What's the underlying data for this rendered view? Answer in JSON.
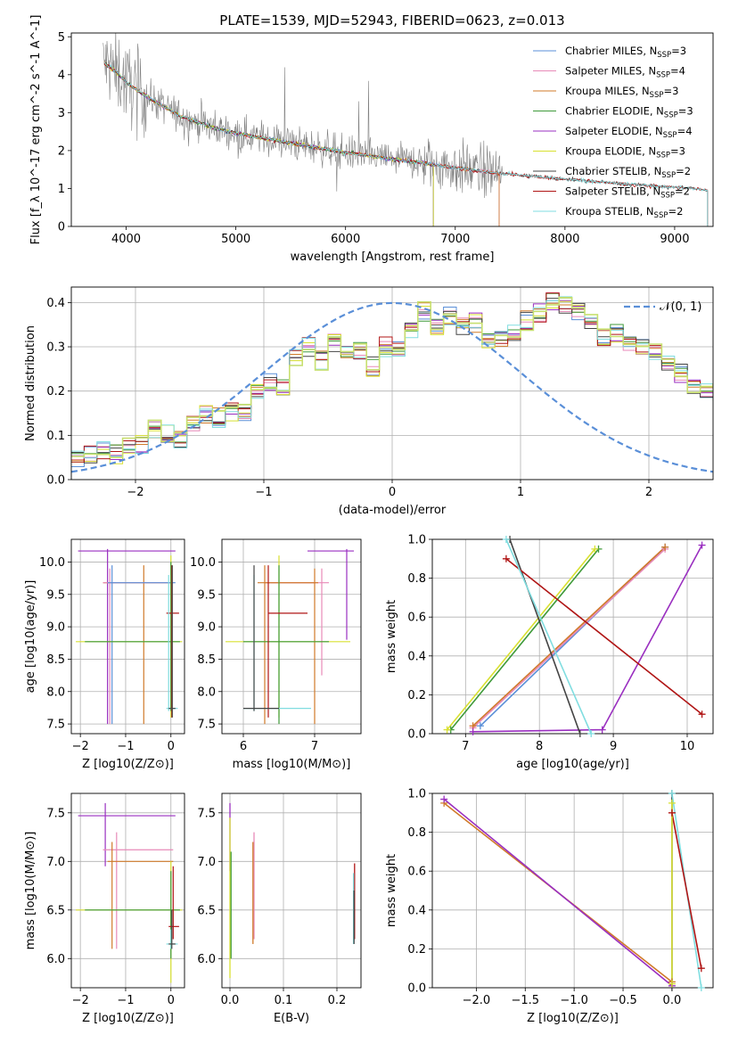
{
  "figure_title": "PLATE=1539, MJD=52943, FIBERID=0623, z=0.013",
  "colors": {
    "observed": "#808080",
    "chabrier_miles": "#5a8fd8",
    "salpeter_miles": "#e88ab8",
    "kroupa_miles": "#d07a2a",
    "chabrier_elodie": "#3f9a3a",
    "salpeter_elodie": "#9a2fc0",
    "kroupa_elodie": "#d8e030",
    "chabrier_stelib": "#444444",
    "salpeter_stelib": "#b01515",
    "kroupa_stelib": "#80dde0",
    "normal": "#5a8fd8",
    "step_extra": "#c8e070"
  },
  "chart_data": [
    {
      "id": "spectrum",
      "type": "line",
      "title": "PLATE=1539, MJD=52943, FIBERID=0623, z=0.013",
      "xlabel": "wavelength [Angstrom, rest frame]",
      "ylabel": "Flux [f_λ 10^-17 erg cm^-2 s^-1 A^-1]",
      "xlim": [
        3500,
        9350
      ],
      "ylim": [
        0,
        5.1
      ],
      "xticks": [
        "4000",
        "5000",
        "6000",
        "7000",
        "8000",
        "9000"
      ],
      "yticks": [
        "0",
        "1",
        "2",
        "3",
        "4",
        "5"
      ],
      "grid": false,
      "legend_position": "top-right",
      "legend": [
        {
          "base": "Chabrier MILES, N",
          "sub": "SSP",
          "tail": "=3",
          "color_key": "chabrier_miles"
        },
        {
          "base": "Salpeter MILES, N",
          "sub": "SSP",
          "tail": "=4",
          "color_key": "salpeter_miles"
        },
        {
          "base": "Kroupa MILES, N",
          "sub": "SSP",
          "tail": "=3",
          "color_key": "kroupa_miles"
        },
        {
          "base": "Chabrier ELODIE, N",
          "sub": "SSP",
          "tail": "=3",
          "color_key": "chabrier_elodie"
        },
        {
          "base": "Salpeter ELODIE, N",
          "sub": "SSP",
          "tail": "=4",
          "color_key": "salpeter_elodie"
        },
        {
          "base": "Kroupa ELODIE, N",
          "sub": "SSP",
          "tail": "=3",
          "color_key": "kroupa_elodie"
        },
        {
          "base": "Chabrier STELIB, N",
          "sub": "SSP",
          "tail": "=2",
          "color_key": "chabrier_stelib"
        },
        {
          "base": "Salpeter STELIB, N",
          "sub": "SSP",
          "tail": "=2",
          "color_key": "salpeter_stelib"
        },
        {
          "base": "Kroupa STELIB, N",
          "sub": "SSP",
          "tail": "=2",
          "color_key": "kroupa_stelib"
        }
      ],
      "continuum": {
        "x": [
          3800,
          3900,
          4000,
          4200,
          4500,
          4800,
          5000,
          5300,
          5600,
          6000,
          6500,
          7000,
          7400,
          8000,
          8500,
          9000,
          9300
        ],
        "y": [
          4.3,
          4.1,
          3.8,
          3.4,
          2.9,
          2.6,
          2.45,
          2.3,
          2.15,
          1.95,
          1.75,
          1.55,
          1.4,
          1.25,
          1.13,
          1.03,
          0.97
        ]
      },
      "ssp_end_wavelength": [
        7400,
        7400,
        7400,
        6800,
        6800,
        6800,
        9300,
        9300,
        9300
      ],
      "observed_end_wavelength": 7430
    },
    {
      "id": "residuals",
      "type": "line",
      "xlabel": "(data-model)/error",
      "ylabel": "Normed distribution",
      "xlim": [
        -2.5,
        2.5
      ],
      "ylim": [
        0,
        0.435
      ],
      "xticks": [
        "−2",
        "−1",
        "0",
        "1",
        "2"
      ],
      "yticks": [
        "0.0",
        "0.1",
        "0.2",
        "0.3",
        "0.4"
      ],
      "grid": true,
      "legend_position": "top-right",
      "legend_label": "𝒩(0, 1)",
      "bin_width": 0.1,
      "bin_start": -2.5,
      "step_values": [
        0.047,
        0.055,
        0.065,
        0.056,
        0.075,
        0.078,
        0.115,
        0.105,
        0.092,
        0.13,
        0.145,
        0.14,
        0.152,
        0.155,
        0.2,
        0.22,
        0.205,
        0.28,
        0.3,
        0.27,
        0.31,
        0.285,
        0.29,
        0.255,
        0.3,
        0.3,
        0.34,
        0.38,
        0.35,
        0.37,
        0.35,
        0.355,
        0.32,
        0.315,
        0.33,
        0.36,
        0.375,
        0.4,
        0.395,
        0.38,
        0.36,
        0.32,
        0.33,
        0.31,
        0.3,
        0.285,
        0.26,
        0.24,
        0.21,
        0.2
      ],
      "step_values_b": [
        0.2,
        0.18,
        0.16,
        0.15,
        0.14,
        0.13,
        0.125,
        0.11,
        0.1,
        0.09,
        0.085,
        0.07,
        0.065,
        0.06,
        0.055,
        0.05,
        0.04,
        0.035,
        0.03,
        0.025
      ]
    },
    {
      "id": "age_vs_z",
      "type": "scatter",
      "xlabel": "Z [log10(Z/Z⊙)]",
      "ylabel": "age [log10(age/yr)]",
      "xlim": [
        -2.2,
        0.3
      ],
      "ylim": [
        7.35,
        10.35
      ],
      "xticks": [
        "−2",
        "−1",
        "0"
      ],
      "yticks": [
        "7.5",
        "8.0",
        "8.5",
        "9.0",
        "9.5",
        "10.0"
      ],
      "grid": true
    },
    {
      "id": "age_vs_mass",
      "type": "scatter",
      "xlabel": "mass [log10(M/M⊙)]",
      "xlim": [
        5.7,
        7.65
      ],
      "ylim": [
        7.35,
        10.35
      ],
      "xticks": [
        "6",
        "7"
      ],
      "yticks": [
        "7.5",
        "8.0",
        "8.5",
        "9.0",
        "9.5",
        "10.0"
      ],
      "grid": true
    },
    {
      "id": "weight_vs_age",
      "type": "line",
      "xlabel": "age [log10(age/yr)]",
      "ylabel": "mass weight",
      "xlim": [
        6.55,
        10.35
      ],
      "ylim": [
        0,
        1
      ],
      "xticks": [
        "7",
        "8",
        "9",
        "10"
      ],
      "yticks": [
        "0.0",
        "0.2",
        "0.4",
        "0.6",
        "0.8",
        "1.0"
      ],
      "grid": true,
      "lines": [
        {
          "color_key": "chabrier_miles",
          "x": [
            7.2,
            9.7
          ],
          "y": [
            0.04,
            0.96
          ]
        },
        {
          "color_key": "salpeter_miles",
          "x": [
            7.1,
            9.7
          ],
          "y": [
            0.03,
            0.95
          ]
        },
        {
          "color_key": "kroupa_miles",
          "x": [
            7.1,
            9.7
          ],
          "y": [
            0.04,
            0.96
          ]
        },
        {
          "color_key": "chabrier_elodie",
          "x": [
            6.8,
            8.8
          ],
          "y": [
            0.02,
            0.95
          ]
        },
        {
          "color_key": "kroupa_elodie",
          "x": [
            6.75,
            8.75
          ],
          "y": [
            0.02,
            0.95
          ]
        },
        {
          "color_key": "salpeter_elodie",
          "x": [
            7.1,
            8.85,
            10.2
          ],
          "y": [
            0.01,
            0.02,
            0.97
          ]
        },
        {
          "color_key": "chabrier_stelib",
          "x": [
            7.6,
            8.55
          ],
          "y": [
            1.0,
            0.0
          ]
        },
        {
          "color_key": "salpeter_stelib",
          "x": [
            7.55,
            10.2
          ],
          "y": [
            0.9,
            0.1
          ]
        },
        {
          "color_key": "kroupa_stelib",
          "x": [
            7.55,
            8.7
          ],
          "y": [
            1.0,
            0.0
          ]
        }
      ]
    },
    {
      "id": "mass_vs_z",
      "type": "scatter",
      "xlabel": "Z [log10(Z/Z⊙)]",
      "ylabel": "mass [log10(M/M⊙)]",
      "xlim": [
        -2.2,
        0.3
      ],
      "ylim": [
        5.7,
        7.7
      ],
      "xticks": [
        "−2",
        "−1",
        "0"
      ],
      "yticks": [
        "6.0",
        "6.5",
        "7.0",
        "7.5"
      ],
      "grid": true
    },
    {
      "id": "mass_vs_ebv",
      "type": "scatter",
      "xlabel": "E(B-V)",
      "xlim": [
        -0.015,
        0.245
      ],
      "ylim": [
        5.7,
        7.7
      ],
      "xticks": [
        "0.0",
        "0.1",
        "0.2"
      ],
      "yticks": [
        "6.0",
        "6.5",
        "7.0",
        "7.5"
      ],
      "grid": true
    },
    {
      "id": "weight_vs_z",
      "type": "line",
      "xlabel": "Z [log10(Z/Z⊙)]",
      "ylabel": "mass weight",
      "xlim": [
        -2.45,
        0.42
      ],
      "ylim": [
        0,
        1
      ],
      "xticks": [
        "−2.0",
        "−1.5",
        "−1.0",
        "−0.5",
        "0.0"
      ],
      "yticks": [
        "0.0",
        "0.2",
        "0.4",
        "0.6",
        "0.8",
        "1.0"
      ],
      "grid": true,
      "lines": [
        {
          "color_key": "kroupa_miles",
          "x": [
            -2.33,
            0.0
          ],
          "y": [
            0.95,
            0.03
          ]
        },
        {
          "color_key": "salpeter_elodie",
          "x": [
            -2.33,
            0.0
          ],
          "y": [
            0.97,
            0.01
          ]
        },
        {
          "color_key": "chabrier_stelib",
          "x": [
            0.0,
            0.0
          ],
          "y": [
            1.0,
            0.0
          ]
        },
        {
          "color_key": "kroupa_stelib",
          "x": [
            0.0,
            0.3
          ],
          "y": [
            1.0,
            0.0
          ]
        },
        {
          "color_key": "salpeter_stelib",
          "x": [
            0.0,
            0.3
          ],
          "y": [
            0.9,
            0.1
          ]
        },
        {
          "color_key": "kroupa_elodie",
          "x": [
            0.0,
            0.0
          ],
          "y": [
            0.95,
            0.02
          ]
        }
      ]
    }
  ]
}
